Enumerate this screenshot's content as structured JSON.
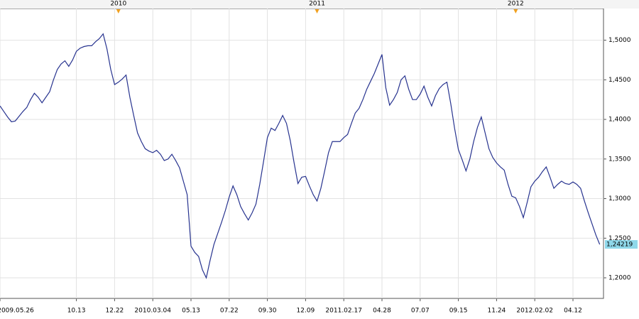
{
  "chart_data": {
    "type": "line",
    "categories": [
      "2009.05.26",
      null,
      null,
      null,
      null,
      null,
      null,
      null,
      null,
      null,
      null,
      null,
      null,
      null,
      null,
      null,
      null,
      null,
      null,
      null,
      "10.13",
      null,
      null,
      null,
      null,
      null,
      null,
      null,
      null,
      null,
      "12.22",
      null,
      null,
      null,
      null,
      null,
      null,
      null,
      null,
      null,
      "2010.03.04",
      null,
      null,
      null,
      null,
      null,
      null,
      null,
      null,
      null,
      "05.13",
      null,
      null,
      null,
      null,
      null,
      null,
      null,
      null,
      null,
      "07.22",
      null,
      null,
      null,
      null,
      null,
      null,
      null,
      null,
      null,
      "09.30",
      null,
      null,
      null,
      null,
      null,
      null,
      null,
      null,
      null,
      "12.09",
      null,
      null,
      null,
      null,
      null,
      null,
      null,
      null,
      null,
      "2011.02.17",
      null,
      null,
      null,
      null,
      null,
      null,
      null,
      null,
      null,
      "04.28",
      null,
      null,
      null,
      null,
      null,
      null,
      null,
      null,
      null,
      "07.07",
      null,
      null,
      null,
      null,
      null,
      null,
      null,
      null,
      null,
      "09.15",
      null,
      null,
      null,
      null,
      null,
      null,
      null,
      null,
      null,
      "11.24",
      null,
      null,
      null,
      null,
      null,
      null,
      null,
      null,
      null,
      "2012.02.02",
      null,
      null,
      null,
      null,
      null,
      null,
      null,
      null,
      null,
      "04.12",
      null,
      null,
      null,
      null,
      null,
      null,
      null
    ],
    "top_labels": [
      null,
      null,
      null,
      null,
      null,
      null,
      null,
      null,
      null,
      null,
      null,
      null,
      null,
      null,
      null,
      null,
      null,
      null,
      null,
      null,
      null,
      null,
      null,
      null,
      null,
      null,
      null,
      null,
      null,
      null,
      null,
      "2010",
      null,
      null,
      null,
      null,
      null,
      null,
      null,
      null,
      null,
      null,
      null,
      null,
      null,
      null,
      null,
      null,
      null,
      null,
      null,
      null,
      null,
      null,
      null,
      null,
      null,
      null,
      null,
      null,
      null,
      null,
      null,
      null,
      null,
      null,
      null,
      null,
      null,
      null,
      null,
      null,
      null,
      null,
      null,
      null,
      null,
      null,
      null,
      null,
      null,
      null,
      null,
      "2011",
      null,
      null,
      null,
      null,
      null,
      null,
      null,
      null,
      null,
      null,
      null,
      null,
      null,
      null,
      null,
      null,
      null,
      null,
      null,
      null,
      null,
      null,
      null,
      null,
      null,
      null,
      null,
      null,
      null,
      null,
      null,
      null,
      null,
      null,
      null,
      null,
      null,
      null,
      null,
      null,
      null,
      null,
      null,
      null,
      null,
      null,
      null,
      null,
      null,
      null,
      null,
      "2012",
      null,
      null,
      null,
      null,
      null,
      null,
      null,
      null,
      null,
      null,
      null,
      null,
      null,
      null,
      null,
      null,
      null,
      null,
      null,
      null,
      null,
      null
    ],
    "series": [
      {
        "color": "#27338f",
        "values": [
          1.417,
          1.41,
          1.403,
          1.397,
          1.398,
          1.404,
          1.41,
          1.415,
          1.425,
          1.433,
          1.428,
          1.421,
          1.428,
          1.435,
          1.45,
          1.463,
          1.47,
          1.474,
          1.467,
          1.475,
          1.486,
          1.49,
          1.492,
          1.493,
          1.493,
          1.498,
          1.502,
          1.508,
          1.489,
          1.463,
          1.444,
          1.447,
          1.451,
          1.456,
          1.428,
          1.405,
          1.383,
          1.372,
          1.363,
          1.36,
          1.358,
          1.361,
          1.356,
          1.348,
          1.35,
          1.356,
          1.348,
          1.339,
          1.322,
          1.305,
          1.24,
          1.232,
          1.227,
          1.21,
          1.2,
          1.222,
          1.242,
          1.256,
          1.27,
          1.285,
          1.302,
          1.316,
          1.305,
          1.29,
          1.281,
          1.273,
          1.282,
          1.293,
          1.318,
          1.347,
          1.377,
          1.389,
          1.386,
          1.395,
          1.405,
          1.395,
          1.373,
          1.345,
          1.319,
          1.327,
          1.328,
          1.316,
          1.305,
          1.297,
          1.313,
          1.335,
          1.358,
          1.372,
          1.372,
          1.372,
          1.377,
          1.381,
          1.395,
          1.408,
          1.414,
          1.425,
          1.438,
          1.448,
          1.458,
          1.47,
          1.482,
          1.44,
          1.418,
          1.425,
          1.434,
          1.45,
          1.455,
          1.438,
          1.425,
          1.425,
          1.432,
          1.442,
          1.428,
          1.417,
          1.43,
          1.439,
          1.444,
          1.447,
          1.42,
          1.389,
          1.362,
          1.349,
          1.335,
          1.35,
          1.372,
          1.39,
          1.403,
          1.383,
          1.363,
          1.352,
          1.345,
          1.34,
          1.336,
          1.318,
          1.303,
          1.301,
          1.29,
          1.276,
          1.295,
          1.315,
          1.322,
          1.327,
          1.334,
          1.34,
          1.327,
          1.313,
          1.318,
          1.322,
          1.319,
          1.318,
          1.321,
          1.318,
          1.313,
          1.297,
          1.282,
          1.268,
          1.254,
          1.24219
        ]
      }
    ],
    "last_price": {
      "value": 1.24219,
      "label": "1,24219"
    },
    "ylim": [
      1.174,
      1.54
    ],
    "yticks": [
      {
        "value": 1.2,
        "label": "1,2000"
      },
      {
        "value": 1.25,
        "label": "1,2500"
      },
      {
        "value": 1.3,
        "label": "1,3000"
      },
      {
        "value": 1.35,
        "label": "1,3500"
      },
      {
        "value": 1.4,
        "label": "1,4000"
      },
      {
        "value": 1.45,
        "label": "1,4500"
      },
      {
        "value": 1.5,
        "label": "1,5000"
      }
    ],
    "grid": true
  }
}
